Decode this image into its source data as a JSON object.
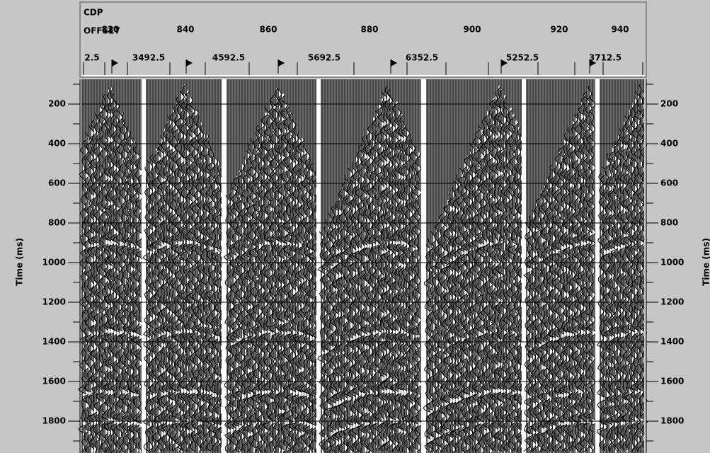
{
  "header": {
    "cdp_label": "CDP",
    "offset_label": "OFFSET",
    "cdp_ticks": [
      "820",
      "840",
      "860",
      "880",
      "900",
      "920",
      "940"
    ],
    "offset_ticks": [
      "2.5",
      "3492.5",
      "4592.5",
      "5692.5",
      "6352.5",
      "5252.5",
      "3712.5"
    ]
  },
  "time_axis": {
    "title": "Time (ms)",
    "ticks": [
      200,
      400,
      600,
      800,
      1000,
      1200,
      1400,
      1600,
      1800
    ]
  }
}
